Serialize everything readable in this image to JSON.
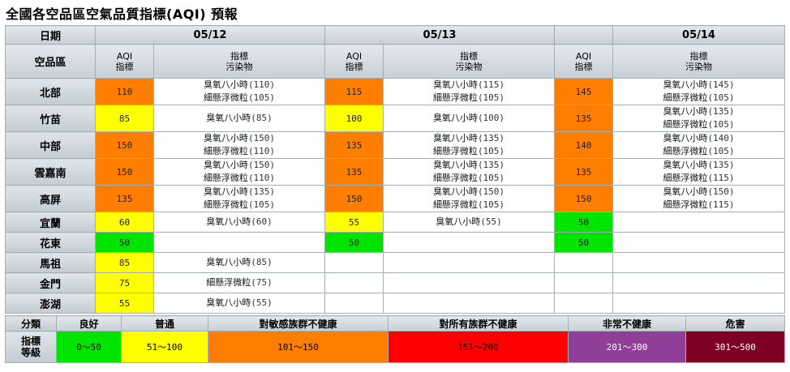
{
  "title": "全國各空品區空氣品質指標(AQI) 預報",
  "header": {
    "date_label": "日期",
    "region_label": "空品區",
    "aqi_label_1": "AQI",
    "aqi_label_2": "指標",
    "pollutant_label_1": "指標",
    "pollutant_label_2": "污染物",
    "dates": [
      "05/12",
      "05/13",
      "05/14"
    ]
  },
  "colors": {
    "good": "#00e400",
    "moderate": "#ffff00",
    "sensitive": "#ff7e00",
    "unhealthy": "#ff0000",
    "very_unhealthy": "#8f3f97",
    "hazardous": "#7e0023"
  },
  "rows": [
    {
      "region": "北部",
      "days": [
        {
          "aqi": "110",
          "level": "sensitive",
          "pollutants": [
            "臭氧八小時",
            "(110)",
            "細懸浮微粒",
            "(105)"
          ]
        },
        {
          "aqi": "115",
          "level": "sensitive",
          "pollutants": [
            "臭氧八小時",
            "(115)",
            "細懸浮微粒",
            "(105)"
          ]
        },
        {
          "aqi": "145",
          "level": "sensitive",
          "pollutants": [
            "臭氧八小時",
            "(145)",
            "細懸浮微粒",
            "(105)"
          ]
        }
      ]
    },
    {
      "region": "竹苗",
      "days": [
        {
          "aqi": "85",
          "level": "moderate",
          "pollutants": [
            "臭氧八小時",
            "(85)"
          ]
        },
        {
          "aqi": "100",
          "level": "moderate",
          "pollutants": [
            "臭氧八小時",
            "(100)"
          ]
        },
        {
          "aqi": "135",
          "level": "sensitive",
          "pollutants": [
            "臭氧八小時",
            "(135)",
            "細懸浮微粒",
            "(105)"
          ]
        }
      ]
    },
    {
      "region": "中部",
      "days": [
        {
          "aqi": "150",
          "level": "sensitive",
          "pollutants": [
            "臭氧八小時",
            "(150)",
            "細懸浮微粒",
            "(110)"
          ]
        },
        {
          "aqi": "135",
          "level": "sensitive",
          "pollutants": [
            "臭氧八小時",
            "(135)",
            "細懸浮微粒",
            "(105)"
          ]
        },
        {
          "aqi": "140",
          "level": "sensitive",
          "pollutants": [
            "臭氧八小時",
            "(140)",
            "細懸浮微粒",
            "(105)"
          ]
        }
      ]
    },
    {
      "region": "雲嘉南",
      "days": [
        {
          "aqi": "150",
          "level": "sensitive",
          "pollutants": [
            "臭氧八小時",
            "(150)",
            "細懸浮微粒",
            "(110)"
          ]
        },
        {
          "aqi": "135",
          "level": "sensitive",
          "pollutants": [
            "臭氧八小時",
            "(135)",
            "細懸浮微粒",
            "(105)"
          ]
        },
        {
          "aqi": "135",
          "level": "sensitive",
          "pollutants": [
            "臭氧八小時",
            "(135)",
            "細懸浮微粒",
            "(115)"
          ]
        }
      ]
    },
    {
      "region": "高屏",
      "days": [
        {
          "aqi": "135",
          "level": "sensitive",
          "pollutants": [
            "臭氧八小時",
            "(135)",
            "細懸浮微粒",
            "(105)"
          ]
        },
        {
          "aqi": "150",
          "level": "sensitive",
          "pollutants": [
            "臭氧八小時",
            "(150)",
            "細懸浮微粒",
            "(105)"
          ]
        },
        {
          "aqi": "150",
          "level": "sensitive",
          "pollutants": [
            "臭氧八小時",
            "(150)",
            "細懸浮微粒",
            "(115)"
          ]
        }
      ]
    },
    {
      "region": "宜蘭",
      "days": [
        {
          "aqi": "60",
          "level": "moderate",
          "pollutants": [
            "臭氧八小時",
            "(60)"
          ]
        },
        {
          "aqi": "55",
          "level": "moderate",
          "pollutants": [
            "臭氧八小時",
            "(55)"
          ]
        },
        {
          "aqi": "50",
          "level": "good",
          "pollutants": []
        }
      ]
    },
    {
      "region": "花東",
      "days": [
        {
          "aqi": "50",
          "level": "good",
          "pollutants": []
        },
        {
          "aqi": "50",
          "level": "good",
          "pollutants": []
        },
        {
          "aqi": "50",
          "level": "good",
          "pollutants": []
        }
      ]
    },
    {
      "region": "馬祖",
      "days": [
        {
          "aqi": "85",
          "level": "moderate",
          "pollutants": [
            "臭氧八小時",
            "(85)"
          ]
        },
        {
          "aqi": "",
          "level": "",
          "pollutants": []
        },
        {
          "aqi": "",
          "level": "",
          "pollutants": []
        }
      ]
    },
    {
      "region": "金門",
      "days": [
        {
          "aqi": "75",
          "level": "moderate",
          "pollutants": [
            "細懸浮微粒",
            "(75)"
          ]
        },
        {
          "aqi": "",
          "level": "",
          "pollutants": []
        },
        {
          "aqi": "",
          "level": "",
          "pollutants": []
        }
      ]
    },
    {
      "region": "澎湖",
      "days": [
        {
          "aqi": "55",
          "level": "moderate",
          "pollutants": [
            "臭氧八小時",
            "(55)"
          ]
        },
        {
          "aqi": "",
          "level": "",
          "pollutants": []
        },
        {
          "aqi": "",
          "level": "",
          "pollutants": []
        }
      ]
    }
  ],
  "legend": {
    "category_label": "分類",
    "index_label_1": "指標",
    "index_label_2": "等級",
    "levels": [
      {
        "name": "良好",
        "range": "0～50",
        "level": "good",
        "text_color": "#000000"
      },
      {
        "name": "普通",
        "range": "51～100",
        "level": "moderate",
        "text_color": "#000000"
      },
      {
        "name": "對敏感族群不健康",
        "range": "101～150",
        "level": "sensitive",
        "text_color": "#000000"
      },
      {
        "name": "對所有族群不健康",
        "range": "151～200",
        "level": "unhealthy",
        "text_color": "#000000"
      },
      {
        "name": "非常不健康",
        "range": "201～300",
        "level": "very_unhealthy",
        "text_color": "#ffffff"
      },
      {
        "name": "危害",
        "range": "301～500",
        "level": "hazardous",
        "text_color": "#ffffff"
      }
    ]
  }
}
